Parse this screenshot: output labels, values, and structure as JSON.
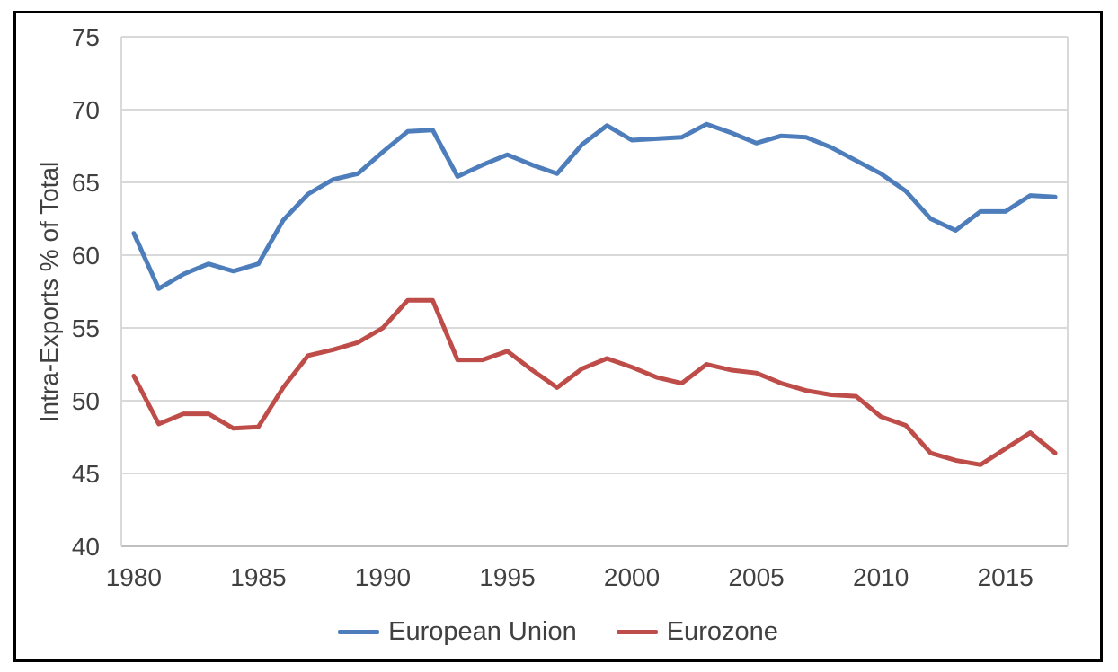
{
  "chart_data": {
    "type": "line",
    "title": "",
    "xlabel": "",
    "ylabel": "Intra-Exports % of Total",
    "ylim": [
      40,
      75
    ],
    "y_ticks": [
      40,
      45,
      50,
      55,
      60,
      65,
      70,
      75
    ],
    "x_tick_years": [
      1980,
      1985,
      1990,
      1995,
      2000,
      2005,
      2010,
      2015
    ],
    "grid": "horizontal",
    "legend_position": "bottom-center",
    "x": [
      1980,
      1981,
      1982,
      1983,
      1984,
      1985,
      1986,
      1987,
      1988,
      1989,
      1990,
      1991,
      1992,
      1993,
      1994,
      1995,
      1996,
      1997,
      1998,
      1999,
      2000,
      2001,
      2002,
      2003,
      2004,
      2005,
      2006,
      2007,
      2008,
      2009,
      2010,
      2011,
      2012,
      2013,
      2014,
      2015,
      2016,
      2017
    ],
    "series": [
      {
        "name": "European Union",
        "color": "#4D7EBB",
        "values": [
          61.5,
          57.7,
          58.7,
          59.4,
          58.9,
          59.4,
          62.4,
          64.2,
          65.2,
          65.6,
          67.1,
          68.5,
          68.6,
          65.4,
          66.2,
          66.9,
          66.2,
          65.6,
          67.6,
          68.9,
          67.9,
          68.0,
          68.1,
          69.0,
          68.4,
          67.7,
          68.2,
          68.1,
          67.4,
          66.5,
          65.6,
          64.4,
          62.5,
          61.7,
          63.0,
          63.0,
          64.1,
          64.0
        ]
      },
      {
        "name": "Eurozone",
        "color": "#BE4C48",
        "values": [
          51.7,
          48.4,
          49.1,
          49.1,
          48.1,
          48.2,
          50.9,
          53.1,
          53.5,
          54.0,
          55.0,
          56.9,
          56.9,
          52.8,
          52.8,
          53.4,
          52.1,
          50.9,
          52.2,
          52.9,
          52.3,
          51.6,
          51.2,
          52.5,
          52.1,
          51.9,
          51.2,
          50.7,
          50.4,
          50.3,
          48.9,
          48.3,
          46.4,
          45.9,
          45.6,
          46.7,
          47.8,
          46.4
        ]
      }
    ],
    "colors": {
      "grid": "#D9D9D9",
      "axis": "#BFBFBF",
      "tick_text": "#404040",
      "frame_border": "#000000"
    }
  }
}
